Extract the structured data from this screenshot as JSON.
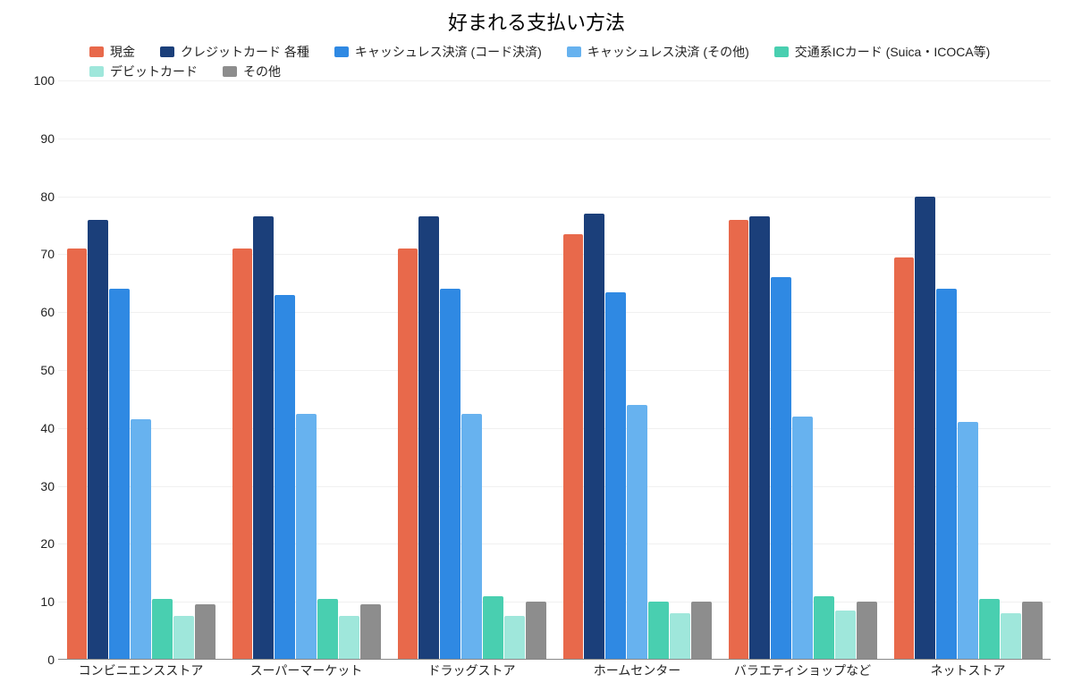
{
  "chart": {
    "type": "bar",
    "title": "好まれる支払い方法",
    "title_fontsize": 22,
    "background_color": "#ffffff",
    "grid_color": "#f0f0f0",
    "baseline_color": "#888888",
    "label_fontsize": 14,
    "y": {
      "lim": [
        0,
        100
      ],
      "tick_step": 10,
      "ticks": [
        0,
        10,
        20,
        30,
        40,
        50,
        60,
        70,
        80,
        90,
        100
      ]
    },
    "series": [
      {
        "label": "現金",
        "color": "#e8694b"
      },
      {
        "label": "クレジットカード 各種",
        "color": "#1b3f7a"
      },
      {
        "label": "キャッシュレス決済 (コード決済)",
        "color": "#2f89e3"
      },
      {
        "label": "キャッシュレス決済 (その他)",
        "color": "#67b2ef"
      },
      {
        "label": "交通系ICカード (Suica・ICOCA等)",
        "color": "#49cfb0"
      },
      {
        "label": "デビットカード",
        "color": "#9fe7db"
      },
      {
        "label": "その他",
        "color": "#8d8d8d"
      }
    ],
    "categories": [
      "コンビニエンスストア",
      "スーパーマーケット",
      "ドラッグストア",
      "ホームセンター",
      "バラエティショップなど",
      "ネットストア"
    ],
    "data": {
      "コンビニエンスストア": [
        71,
        76,
        64,
        41.5,
        10.5,
        7.5,
        9.5
      ],
      "スーパーマーケット": [
        71,
        76.5,
        63,
        42.5,
        10.5,
        7.5,
        9.5
      ],
      "ドラッグストア": [
        71,
        76.5,
        64,
        42.5,
        11,
        7.5,
        10
      ],
      "ホームセンター": [
        73.5,
        77,
        63.5,
        44,
        10,
        8,
        10
      ],
      "バラエティショップなど": [
        76,
        76.5,
        66,
        42,
        11,
        8.5,
        10
      ],
      "ネットストア": [
        69.5,
        80,
        64,
        41,
        10.5,
        8,
        10
      ]
    },
    "bar_group_padding": 9
  }
}
